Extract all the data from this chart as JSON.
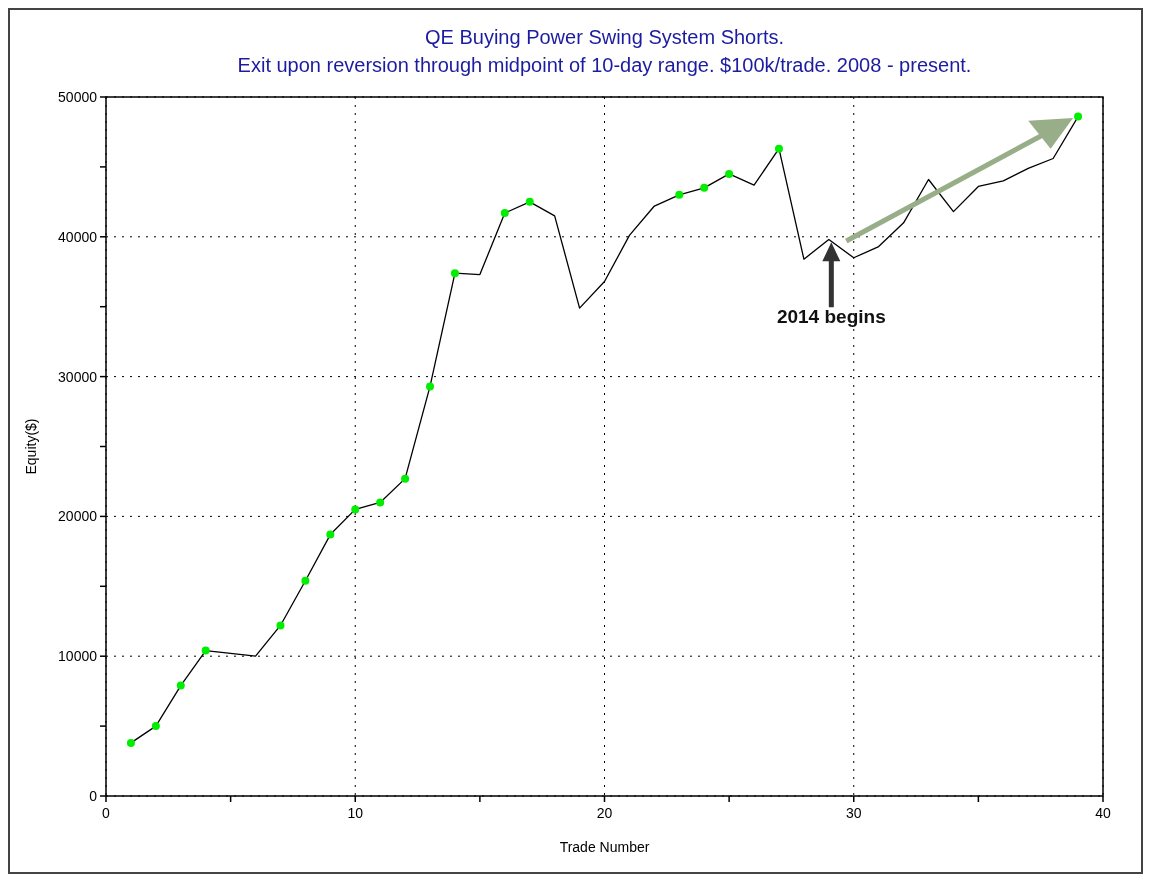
{
  "chart_data": {
    "type": "line",
    "title": "QE Buying Power Swing System Shorts.",
    "subtitle": "Exit upon reversion through midpoint of 10-day range. $100k/trade. 2008 - present.",
    "xlabel": "Trade Number",
    "ylabel": "Equity($)",
    "xlim": [
      0,
      40
    ],
    "xticks": [
      0,
      {
        "value": 5,
        "label": null
      },
      10,
      {
        "value": 15,
        "label": null
      },
      20,
      {
        "value": 25,
        "label": null
      },
      30,
      {
        "value": 35,
        "label": null
      },
      40
    ],
    "ylim": [
      0,
      50000
    ],
    "yticks": [
      0,
      {
        "value": 5000,
        "label": null
      },
      10000,
      {
        "value": 15000,
        "label": null
      },
      20000,
      {
        "value": 25000,
        "label": null
      },
      30000,
      {
        "value": 35000,
        "label": null
      },
      40000,
      {
        "value": 45000,
        "label": null
      },
      50000
    ],
    "grid": true,
    "annotations": [
      "2014 begins"
    ],
    "series": [
      {
        "color": "#000000",
        "marker": "none",
        "x": [
          1,
          2,
          3,
          4,
          5,
          6,
          7,
          8,
          9,
          10,
          11,
          12,
          13,
          14,
          15,
          16,
          17,
          18,
          19,
          20,
          21,
          22,
          23,
          24,
          25,
          26,
          27,
          28,
          29,
          30,
          31,
          32,
          33,
          34,
          35,
          36,
          37,
          38,
          39
        ],
        "values": [
          3800,
          5000,
          7900,
          10400,
          10200,
          10000,
          12200,
          15400,
          18700,
          20500,
          21000,
          22700,
          29300,
          37400,
          37300,
          41700,
          42500,
          41500,
          34900,
          36800,
          40100,
          42200,
          43000,
          43500,
          44500,
          43700,
          46300,
          38400,
          39800,
          38500,
          39300,
          41000,
          44100,
          41800,
          43600,
          44000,
          44900,
          45600,
          48600
        ]
      },
      {
        "type": "scatter",
        "color": "#00ee00",
        "marker": "circle",
        "x": [
          1,
          2,
          3,
          4,
          7,
          8,
          9,
          10,
          11,
          12,
          13,
          14,
          16,
          17,
          23,
          24,
          25,
          27,
          39
        ],
        "values": [
          3800,
          5000,
          7900,
          10400,
          12200,
          15400,
          18700,
          20500,
          21000,
          22700,
          29300,
          37400,
          41700,
          42500,
          43000,
          43500,
          44500,
          46300,
          48600
        ]
      }
    ]
  }
}
